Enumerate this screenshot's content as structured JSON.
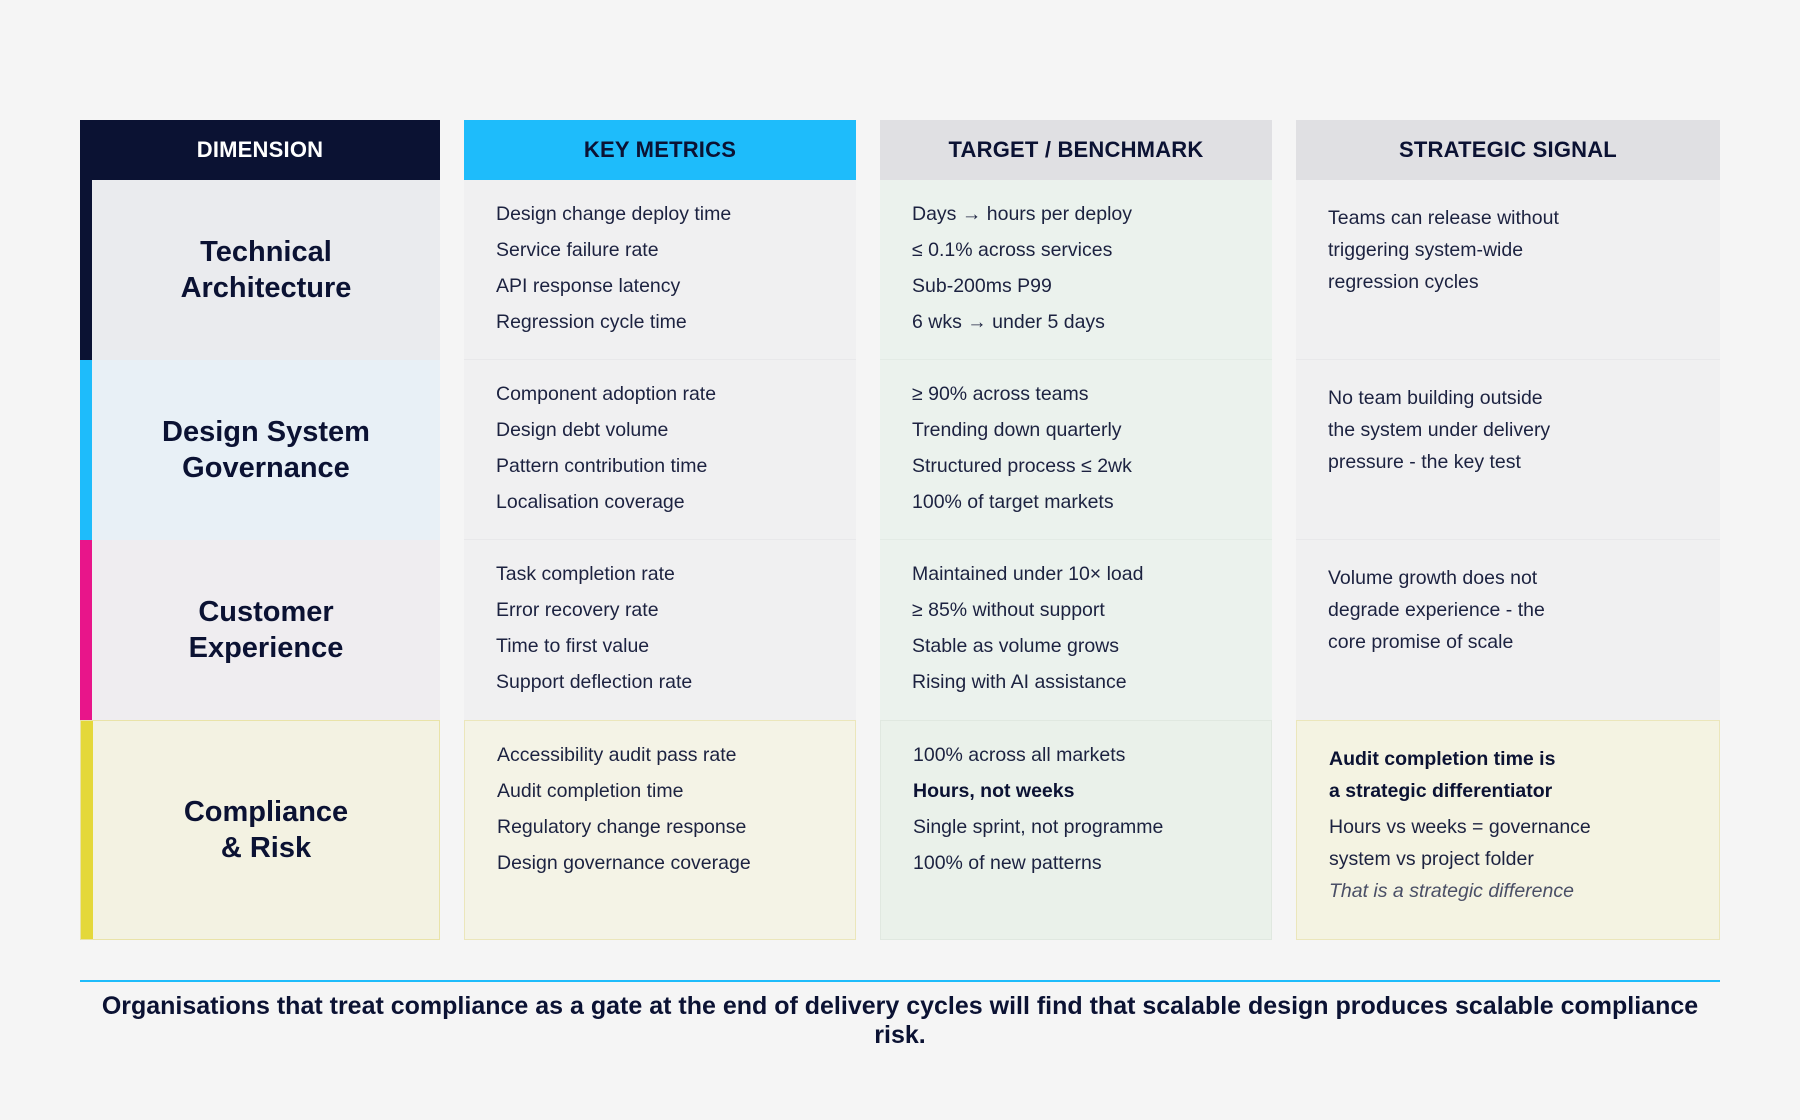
{
  "headers": {
    "dimension": "DIMENSION",
    "metrics": "KEY METRICS",
    "target": "TARGET / BENCHMARK",
    "signal": "STRATEGIC SIGNAL"
  },
  "colors": {
    "navy": "#0b1233",
    "cyan": "#1ebcfb",
    "magenta": "#e8158a",
    "yellow": "#e4d83a"
  },
  "rows": [
    {
      "dimension": [
        "Technical",
        "Architecture"
      ],
      "accent": "#0b1233",
      "metrics": [
        "Design change deploy time",
        "Service failure rate",
        "API response latency",
        "Regression cycle time"
      ],
      "targets": [
        "Days → hours per deploy",
        "≤ 0.1% across services",
        "Sub-200ms P99",
        "6 wks → under 5 days"
      ],
      "signal": [
        "Teams can release without",
        "triggering system-wide",
        "regression cycles"
      ]
    },
    {
      "dimension": [
        "Design System",
        "Governance"
      ],
      "accent": "#1ebcfb",
      "metrics": [
        "Component adoption rate",
        "Design debt volume",
        "Pattern contribution time",
        "Localisation coverage"
      ],
      "targets": [
        "≥ 90% across teams",
        "Trending down quarterly",
        "Structured process ≤ 2wk",
        "100% of target markets"
      ],
      "signal": [
        "No team building outside",
        "the system under delivery",
        "pressure - the key test"
      ]
    },
    {
      "dimension": [
        "Customer",
        "Experience"
      ],
      "accent": "#e8158a",
      "metrics": [
        "Task completion rate",
        "Error recovery rate",
        "Time to first value",
        "Support deflection rate"
      ],
      "targets": [
        "Maintained under 10× load",
        "≥ 85% without support",
        "Stable as volume grows",
        "Rising with AI assistance"
      ],
      "signal": [
        "Volume growth does not",
        "degrade experience - the",
        "core promise of scale"
      ]
    },
    {
      "dimension": [
        "Compliance",
        "& Risk"
      ],
      "accent": "#e4d83a",
      "metrics": [
        "Accessibility audit pass rate",
        "Audit completion time",
        "Regulatory change response",
        "Design governance coverage"
      ],
      "targets": [
        "100% across all markets",
        "Hours, not weeks",
        "Single sprint, not programme",
        "100% of new patterns"
      ],
      "signal_lead": [
        "Audit completion time is",
        "a strategic differentiator"
      ],
      "signal": [
        "Hours vs weeks = governance",
        "system vs project folder"
      ],
      "signal_note": "That is a strategic difference"
    }
  ],
  "footer": "Organisations that treat compliance as a gate at the end of delivery cycles will find that scalable design produces scalable compliance risk."
}
